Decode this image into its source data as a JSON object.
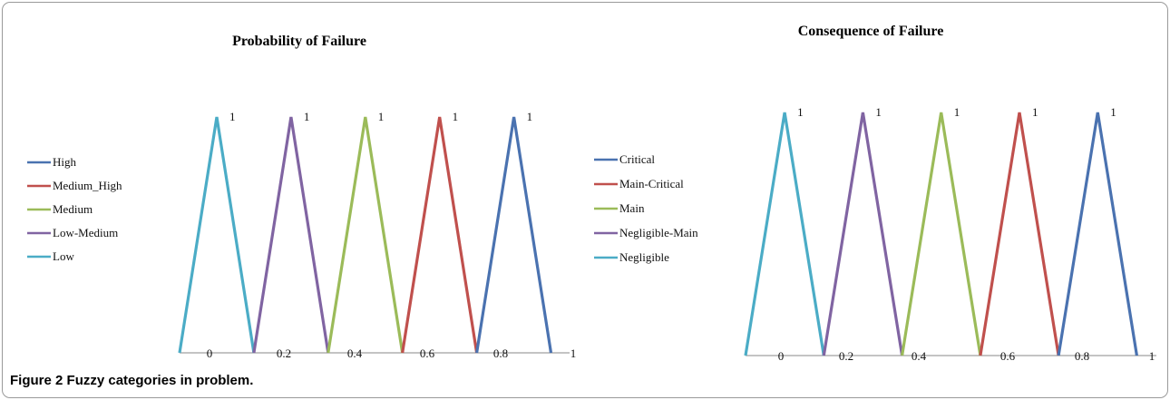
{
  "caption": {
    "label": "Figure 2",
    "text": "Fuzzy categories in problem."
  },
  "chart_data": [
    {
      "type": "line",
      "title": "Probability of Failure",
      "legend_position": "left",
      "x_ticks": [
        "0",
        "0.2",
        "0.4",
        "0.6",
        "0.8",
        "1"
      ],
      "peak_label": "1",
      "grid": false,
      "series": [
        {
          "name": "High",
          "color": "#4a72b0",
          "x": [
            0.7,
            0.8,
            0.9
          ],
          "y": [
            0,
            1,
            0
          ]
        },
        {
          "name": "Medium_High",
          "color": "#c0504d",
          "x": [
            0.5,
            0.6,
            0.7
          ],
          "y": [
            0,
            1,
            0
          ]
        },
        {
          "name": "Medium",
          "color": "#9bbb59",
          "x": [
            0.3,
            0.4,
            0.5
          ],
          "y": [
            0,
            1,
            0
          ]
        },
        {
          "name": "Low-Medium",
          "color": "#8064a2",
          "x": [
            0.1,
            0.2,
            0.3
          ],
          "y": [
            0,
            1,
            0
          ]
        },
        {
          "name": "Low",
          "color": "#4bacc6",
          "x": [
            -0.1,
            0.0,
            0.1
          ],
          "y": [
            0,
            1,
            0
          ]
        }
      ]
    },
    {
      "type": "line",
      "title": "Consequence of Failure",
      "legend_position": "left",
      "x_ticks": [
        "0",
        "0.2",
        "0.4",
        "0.6",
        "0.8",
        "1"
      ],
      "peak_label": "1",
      "grid": false,
      "series": [
        {
          "name": "Critical",
          "color": "#4a72b0",
          "x": [
            0.7,
            0.8,
            0.9
          ],
          "y": [
            0,
            1,
            0
          ]
        },
        {
          "name": "Main-Critical",
          "color": "#c0504d",
          "x": [
            0.5,
            0.6,
            0.7
          ],
          "y": [
            0,
            1,
            0
          ]
        },
        {
          "name": "Main",
          "color": "#9bbb59",
          "x": [
            0.3,
            0.4,
            0.5
          ],
          "y": [
            0,
            1,
            0
          ]
        },
        {
          "name": "Negligible-Main",
          "color": "#8064a2",
          "x": [
            0.1,
            0.2,
            0.3
          ],
          "y": [
            0,
            1,
            0
          ]
        },
        {
          "name": "Negligible",
          "color": "#4bacc6",
          "x": [
            -0.1,
            0.0,
            0.1
          ],
          "y": [
            0,
            1,
            0
          ]
        }
      ]
    }
  ]
}
